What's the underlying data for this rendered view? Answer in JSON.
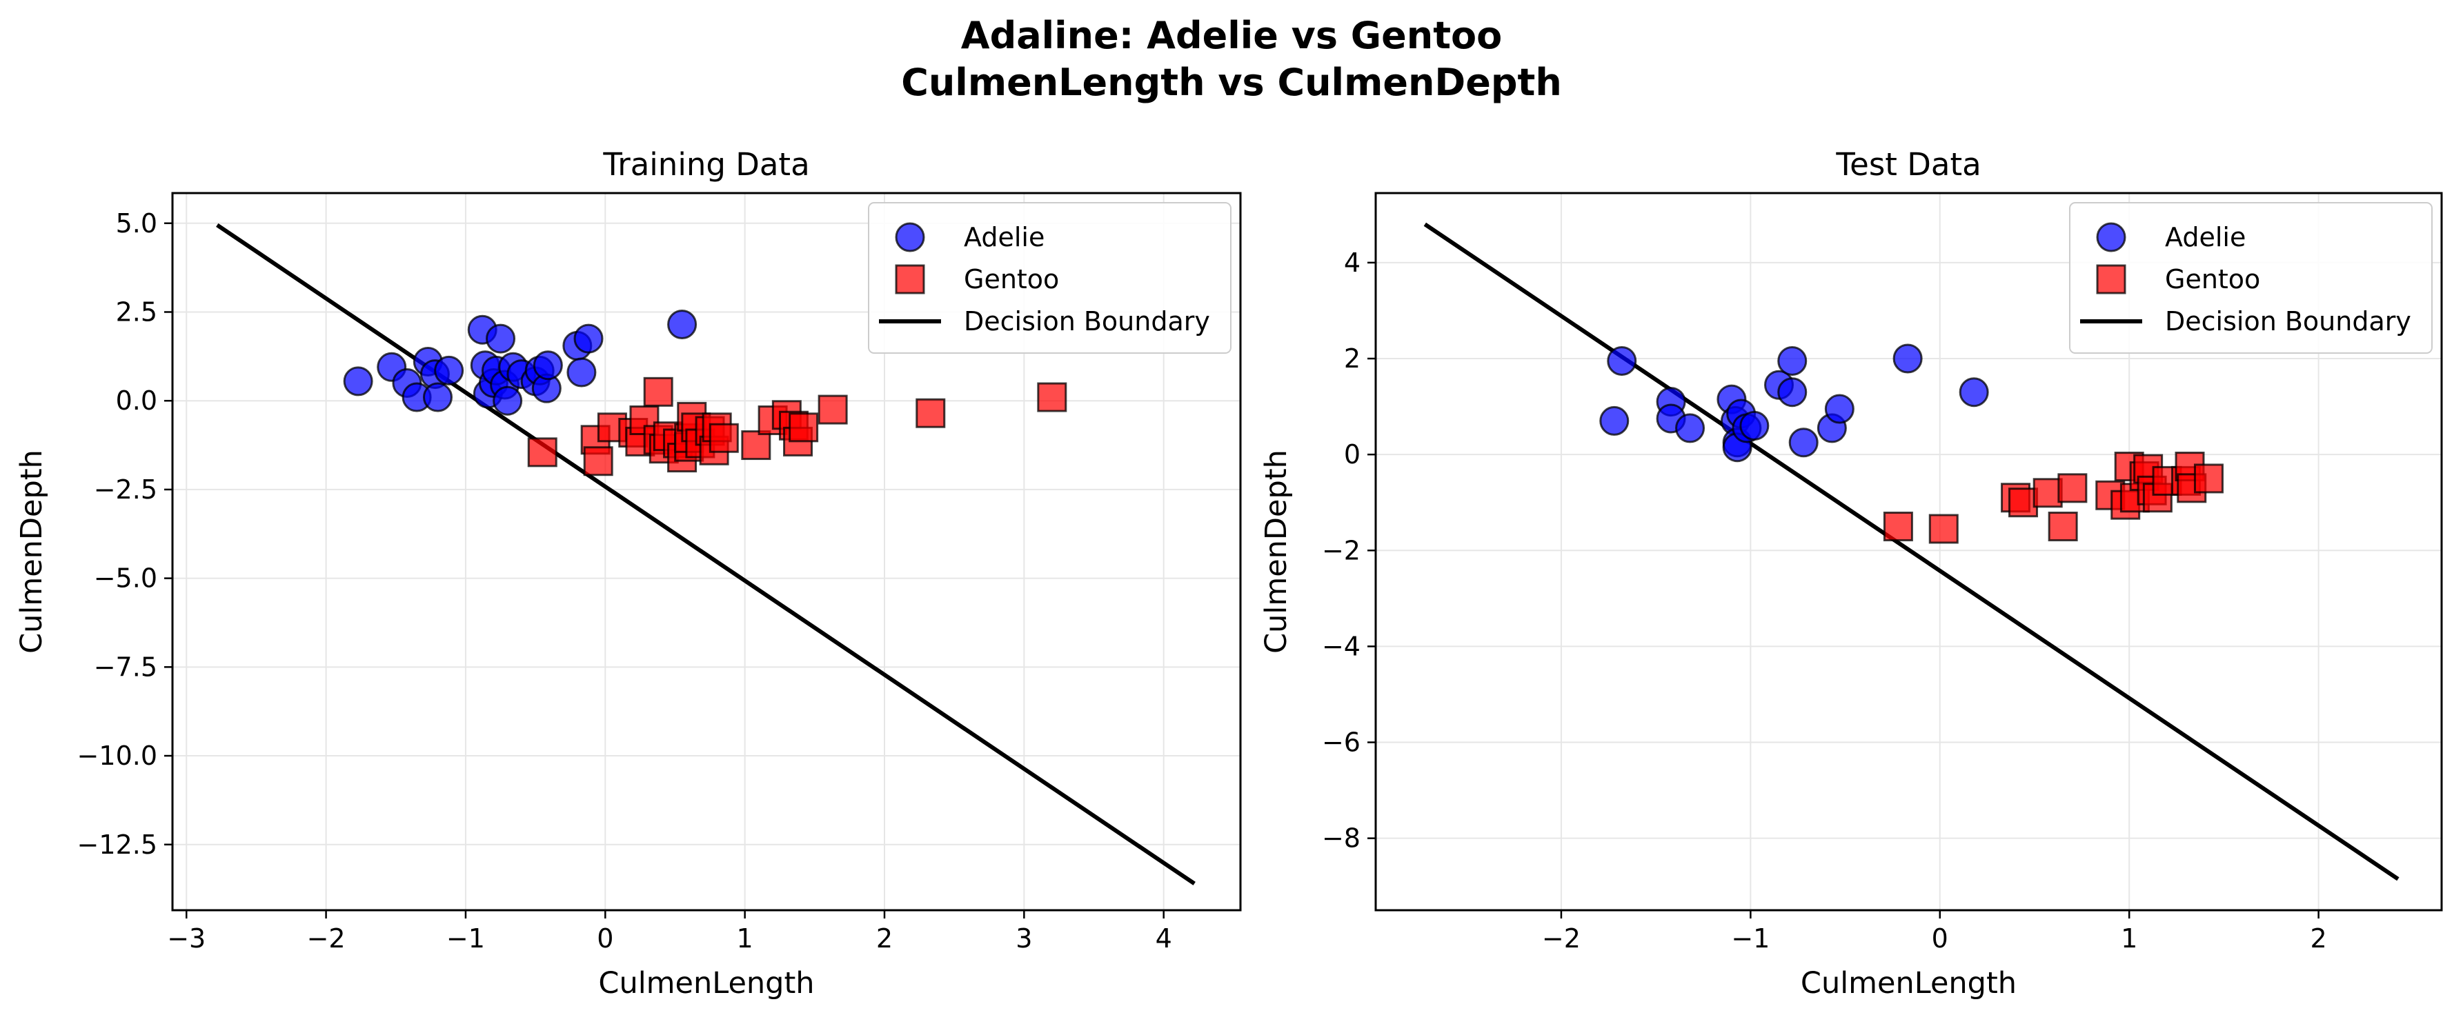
{
  "figure": {
    "title_line1": "Adaline: Adelie vs Gentoo",
    "title_line2": "CulmenLength vs CulmenDepth"
  },
  "colors": {
    "adelie": "#0000ff",
    "gentoo": "#ff0000",
    "boundary": "#000000",
    "grid": "#e6e6e6"
  },
  "legend": {
    "adelie": "Adelie",
    "gentoo": "Gentoo",
    "boundary": "Decision Boundary",
    "placement": "top-right"
  },
  "chart_data": [
    {
      "type": "scatter",
      "title": "Training Data",
      "xlabel": "CulmenLength",
      "ylabel": "CulmenDepth",
      "xlim": [
        -3.1,
        4.55
      ],
      "ylim": [
        -14.35,
        5.85
      ],
      "xticks": [
        -3,
        -2,
        -1,
        0,
        1,
        2,
        3,
        4
      ],
      "xtick_labels": [
        "−3",
        "−2",
        "−1",
        "0",
        "1",
        "2",
        "3",
        "4"
      ],
      "yticks": [
        5.0,
        2.5,
        0.0,
        -2.5,
        -5.0,
        -7.5,
        -10.0,
        -12.5
      ],
      "ytick_labels": [
        "5.0",
        "2.5",
        "0.0",
        "−2.5",
        "−5.0",
        "−7.5",
        "−10.0",
        "−12.5"
      ],
      "grid": true,
      "series": [
        {
          "name": "Adelie",
          "marker": "circle",
          "points": [
            [
              -1.77,
              0.55
            ],
            [
              -1.53,
              0.95
            ],
            [
              -1.42,
              0.5
            ],
            [
              -1.35,
              0.1
            ],
            [
              -1.27,
              1.1
            ],
            [
              -1.22,
              0.75
            ],
            [
              -1.2,
              0.1
            ],
            [
              -1.12,
              0.85
            ],
            [
              -0.88,
              2.0
            ],
            [
              -0.86,
              1.0
            ],
            [
              -0.84,
              0.2
            ],
            [
              -0.8,
              0.5
            ],
            [
              -0.78,
              0.85
            ],
            [
              -0.75,
              1.75
            ],
            [
              -0.72,
              0.45
            ],
            [
              -0.7,
              0.0
            ],
            [
              -0.66,
              0.95
            ],
            [
              -0.6,
              0.75
            ],
            [
              -0.5,
              0.55
            ],
            [
              -0.47,
              0.85
            ],
            [
              -0.42,
              0.35
            ],
            [
              -0.41,
              1.0
            ],
            [
              -0.2,
              1.55
            ],
            [
              -0.17,
              0.8
            ],
            [
              -0.12,
              1.75
            ],
            [
              0.55,
              2.15
            ]
          ]
        },
        {
          "name": "Gentoo",
          "marker": "square",
          "points": [
            [
              -0.45,
              -1.45
            ],
            [
              -0.07,
              -1.1
            ],
            [
              -0.05,
              -1.7
            ],
            [
              0.05,
              -0.75
            ],
            [
              0.2,
              -0.9
            ],
            [
              0.25,
              -1.15
            ],
            [
              0.28,
              -0.55
            ],
            [
              0.38,
              0.25
            ],
            [
              0.38,
              -1.1
            ],
            [
              0.42,
              -1.35
            ],
            [
              0.45,
              -1.0
            ],
            [
              0.52,
              -1.2
            ],
            [
              0.55,
              -1.6
            ],
            [
              0.6,
              -1.3
            ],
            [
              0.6,
              -1.05
            ],
            [
              0.62,
              -0.45
            ],
            [
              0.65,
              -0.75
            ],
            [
              0.68,
              -1.2
            ],
            [
              0.75,
              -0.85
            ],
            [
              0.78,
              -1.4
            ],
            [
              0.8,
              -0.75
            ],
            [
              0.85,
              -1.05
            ],
            [
              1.08,
              -1.25
            ],
            [
              1.2,
              -0.55
            ],
            [
              1.3,
              -0.4
            ],
            [
              1.35,
              -0.7
            ],
            [
              1.38,
              -1.15
            ],
            [
              1.42,
              -0.75
            ],
            [
              1.63,
              -0.25
            ],
            [
              2.33,
              -0.35
            ],
            [
              3.2,
              0.1
            ]
          ]
        },
        {
          "name": "Decision Boundary",
          "marker": "line",
          "points": [
            [
              -2.78,
              4.95
            ],
            [
              4.22,
              -13.6
            ]
          ]
        }
      ]
    },
    {
      "type": "scatter",
      "title": "Test Data",
      "xlabel": "CulmenLength",
      "ylabel": "CulmenDepth",
      "xlim": [
        -2.98,
        2.65
      ],
      "ylim": [
        -9.5,
        5.45
      ],
      "xticks": [
        -2,
        -1,
        0,
        1,
        2
      ],
      "xtick_labels": [
        "−2",
        "−1",
        "0",
        "1",
        "2"
      ],
      "yticks": [
        4,
        2,
        0,
        -2,
        -4,
        -6,
        -8
      ],
      "ytick_labels": [
        "4",
        "2",
        "0",
        "−2",
        "−4",
        "−6",
        "−8"
      ],
      "grid": true,
      "series": [
        {
          "name": "Adelie",
          "marker": "circle",
          "points": [
            [
              -1.72,
              0.7
            ],
            [
              -1.68,
              1.95
            ],
            [
              -1.42,
              1.1
            ],
            [
              -1.42,
              0.75
            ],
            [
              -1.32,
              0.55
            ],
            [
              -1.1,
              1.15
            ],
            [
              -1.08,
              0.7
            ],
            [
              -1.07,
              0.25
            ],
            [
              -1.07,
              0.15
            ],
            [
              -1.05,
              0.85
            ],
            [
              -1.02,
              0.55
            ],
            [
              -0.98,
              0.6
            ],
            [
              -0.85,
              1.45
            ],
            [
              -0.78,
              1.95
            ],
            [
              -0.78,
              1.3
            ],
            [
              -0.72,
              0.25
            ],
            [
              -0.57,
              0.55
            ],
            [
              -0.53,
              0.95
            ],
            [
              -0.17,
              2.0
            ],
            [
              0.18,
              1.3
            ]
          ]
        },
        {
          "name": "Gentoo",
          "marker": "square",
          "points": [
            [
              -0.22,
              -1.5
            ],
            [
              0.02,
              -1.55
            ],
            [
              0.4,
              -0.9
            ],
            [
              0.44,
              -1.0
            ],
            [
              0.57,
              -0.8
            ],
            [
              0.65,
              -1.5
            ],
            [
              0.7,
              -0.7
            ],
            [
              0.9,
              -0.85
            ],
            [
              0.98,
              -1.05
            ],
            [
              1.0,
              -0.25
            ],
            [
              1.03,
              -0.9
            ],
            [
              1.08,
              -0.45
            ],
            [
              1.1,
              -0.3
            ],
            [
              1.12,
              -0.75
            ],
            [
              1.15,
              -0.9
            ],
            [
              1.2,
              -0.55
            ],
            [
              1.3,
              -0.55
            ],
            [
              1.32,
              -0.25
            ],
            [
              1.33,
              -0.7
            ],
            [
              1.42,
              -0.5
            ]
          ]
        },
        {
          "name": "Decision Boundary",
          "marker": "line",
          "points": [
            [
              -2.72,
              4.8
            ],
            [
              2.42,
              -8.85
            ]
          ]
        }
      ]
    }
  ]
}
